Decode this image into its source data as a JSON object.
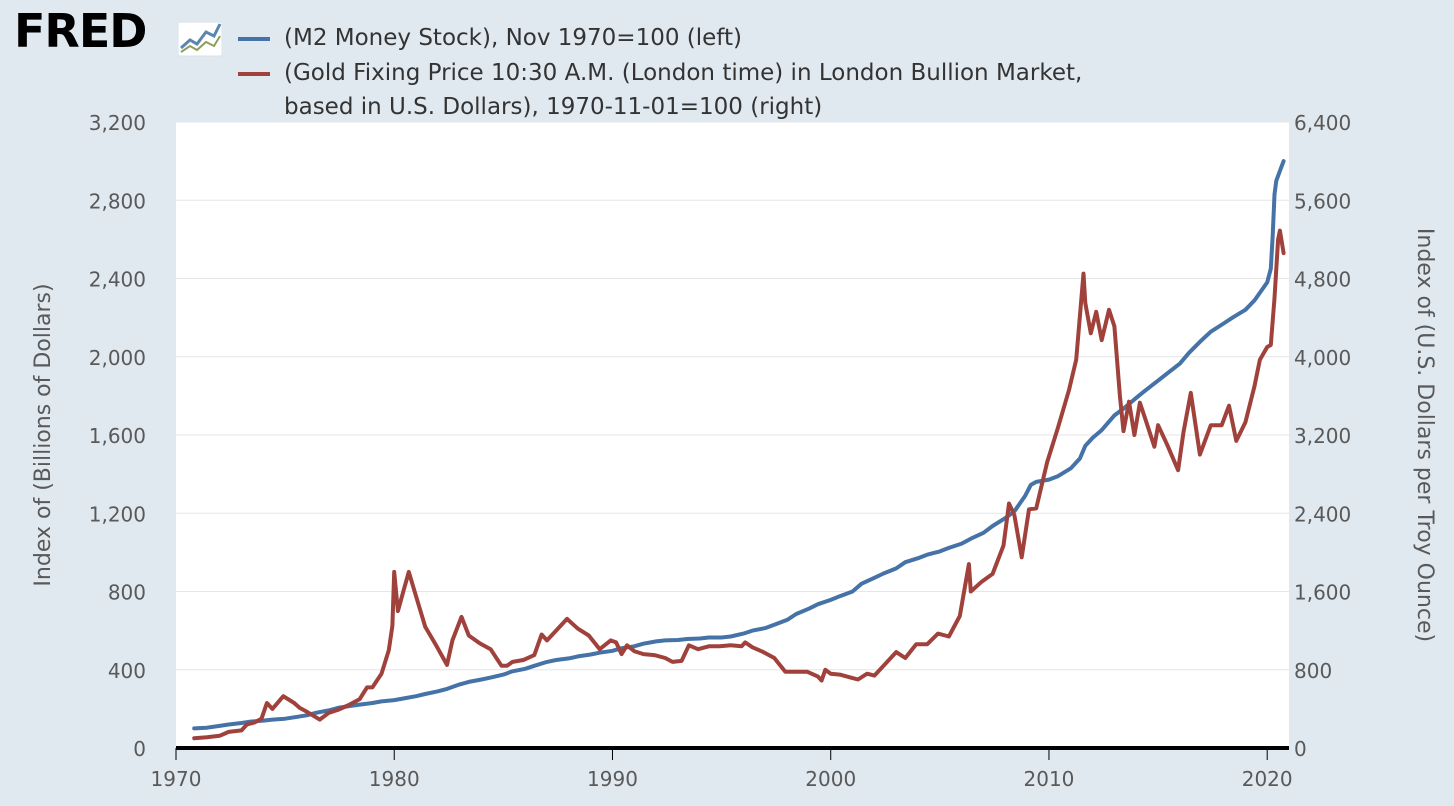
{
  "brand": {
    "logo_text": "FRED"
  },
  "chart_data": {
    "type": "line",
    "legend_placement": "top",
    "grid": true,
    "x": {
      "type": "date",
      "range": [
        "1970-01-01",
        "2020-12-31"
      ],
      "ticks": [
        "1970",
        "1980",
        "1990",
        "2000",
        "2010",
        "2020"
      ]
    },
    "y_left": {
      "label": "Index of (Billions of Dollars)",
      "range": [
        0,
        3200
      ],
      "ticks": [
        "0",
        "400",
        "800",
        "1,200",
        "1,600",
        "2,000",
        "2,400",
        "2,800",
        "3,200"
      ]
    },
    "y_right": {
      "label": "Index of (U.S. Dollars per Troy Ounce)",
      "range": [
        0,
        6400
      ],
      "ticks": [
        "0",
        "800",
        "1,600",
        "2,400",
        "3,200",
        "4,000",
        "4,800",
        "5,600",
        "6,400"
      ]
    },
    "series": [
      {
        "name_lines": [
          "(M2 Money Stock), Nov 1970=100 (left)"
        ],
        "axis": "left",
        "color": "#4572a7",
        "points": [
          [
            "1970-11",
            100
          ],
          [
            "1971-06",
            104
          ],
          [
            "1972-01",
            113
          ],
          [
            "1972-06",
            120
          ],
          [
            "1973-01",
            128
          ],
          [
            "1973-06",
            135
          ],
          [
            "1974-01",
            140
          ],
          [
            "1974-06",
            145
          ],
          [
            "1975-01",
            150
          ],
          [
            "1975-06",
            157
          ],
          [
            "1976-01",
            167
          ],
          [
            "1976-06",
            180
          ],
          [
            "1977-01",
            192
          ],
          [
            "1977-06",
            205
          ],
          [
            "1978-01",
            215
          ],
          [
            "1978-06",
            222
          ],
          [
            "1979-01",
            230
          ],
          [
            "1979-06",
            238
          ],
          [
            "1980-01",
            245
          ],
          [
            "1980-06",
            253
          ],
          [
            "1981-01",
            265
          ],
          [
            "1981-06",
            276
          ],
          [
            "1982-01",
            290
          ],
          [
            "1982-06",
            302
          ],
          [
            "1983-01",
            325
          ],
          [
            "1983-06",
            338
          ],
          [
            "1984-01",
            350
          ],
          [
            "1984-06",
            360
          ],
          [
            "1985-01",
            375
          ],
          [
            "1985-06",
            392
          ],
          [
            "1986-01",
            405
          ],
          [
            "1986-06",
            420
          ],
          [
            "1987-01",
            440
          ],
          [
            "1987-06",
            450
          ],
          [
            "1988-01",
            458
          ],
          [
            "1988-06",
            468
          ],
          [
            "1989-01",
            478
          ],
          [
            "1989-06",
            487
          ],
          [
            "1990-01",
            497
          ],
          [
            "1990-06",
            510
          ],
          [
            "1991-01",
            520
          ],
          [
            "1991-06",
            533
          ],
          [
            "1992-01",
            545
          ],
          [
            "1992-06",
            550
          ],
          [
            "1993-01",
            552
          ],
          [
            "1993-06",
            557
          ],
          [
            "1994-01",
            560
          ],
          [
            "1994-06",
            565
          ],
          [
            "1995-01",
            565
          ],
          [
            "1995-06",
            570
          ],
          [
            "1996-01",
            585
          ],
          [
            "1996-06",
            600
          ],
          [
            "1997-01",
            613
          ],
          [
            "1997-06",
            630
          ],
          [
            "1998-01",
            655
          ],
          [
            "1998-06",
            685
          ],
          [
            "1999-01",
            712
          ],
          [
            "1999-06",
            735
          ],
          [
            "2000-01",
            757
          ],
          [
            "2000-06",
            776
          ],
          [
            "2001-01",
            800
          ],
          [
            "2001-06",
            840
          ],
          [
            "2002-01",
            870
          ],
          [
            "2002-06",
            892
          ],
          [
            "2003-01",
            918
          ],
          [
            "2003-06",
            950
          ],
          [
            "2004-01",
            970
          ],
          [
            "2004-06",
            988
          ],
          [
            "2005-01",
            1005
          ],
          [
            "2005-06",
            1023
          ],
          [
            "2006-01",
            1045
          ],
          [
            "2006-06",
            1070
          ],
          [
            "2007-01",
            1100
          ],
          [
            "2007-06",
            1135
          ],
          [
            "2008-01",
            1175
          ],
          [
            "2008-06",
            1210
          ],
          [
            "2008-12",
            1290
          ],
          [
            "2009-03",
            1345
          ],
          [
            "2009-06",
            1360
          ],
          [
            "2010-01",
            1372
          ],
          [
            "2010-06",
            1390
          ],
          [
            "2011-01",
            1430
          ],
          [
            "2011-06",
            1480
          ],
          [
            "2011-09",
            1545
          ],
          [
            "2012-01",
            1585
          ],
          [
            "2012-06",
            1625
          ],
          [
            "2013-01",
            1700
          ],
          [
            "2013-06",
            1735
          ],
          [
            "2014-01",
            1790
          ],
          [
            "2014-06",
            1828
          ],
          [
            "2015-01",
            1878
          ],
          [
            "2015-06",
            1915
          ],
          [
            "2016-01",
            1965
          ],
          [
            "2016-06",
            2020
          ],
          [
            "2017-01",
            2085
          ],
          [
            "2017-06",
            2128
          ],
          [
            "2018-01",
            2170
          ],
          [
            "2018-06",
            2200
          ],
          [
            "2019-01",
            2240
          ],
          [
            "2019-06",
            2288
          ],
          [
            "2020-01",
            2380
          ],
          [
            "2020-03",
            2450
          ],
          [
            "2020-04",
            2620
          ],
          [
            "2020-05",
            2830
          ],
          [
            "2020-06",
            2900
          ],
          [
            "2020-08",
            2950
          ],
          [
            "2020-10",
            3000
          ]
        ]
      },
      {
        "name_lines": [
          "(Gold Fixing Price 10:30 A.M. (London time) in London Bullion Market,",
          "based in U.S. Dollars), 1970-11-01=100 (right)"
        ],
        "axis": "right",
        "color": "#a0413c",
        "points": [
          [
            "1970-11",
            100
          ],
          [
            "1971-06",
            110
          ],
          [
            "1972-01",
            125
          ],
          [
            "1972-06",
            165
          ],
          [
            "1973-01",
            180
          ],
          [
            "1973-04",
            240
          ],
          [
            "1973-08",
            260
          ],
          [
            "1973-12",
            300
          ],
          [
            "1974-03",
            460
          ],
          [
            "1974-06",
            400
          ],
          [
            "1974-12",
            530
          ],
          [
            "1975-06",
            460
          ],
          [
            "1975-09",
            410
          ],
          [
            "1976-01",
            370
          ],
          [
            "1976-08",
            290
          ],
          [
            "1977-01",
            360
          ],
          [
            "1977-06",
            390
          ],
          [
            "1977-12",
            440
          ],
          [
            "1978-06",
            500
          ],
          [
            "1978-10,",
            620
          ],
          [
            "1979-01",
            620
          ],
          [
            "1979-06",
            760
          ],
          [
            "1979-10",
            1000
          ],
          [
            "1979-12",
            1250
          ],
          [
            "1980-01",
            1800
          ],
          [
            "1980-03",
            1400
          ],
          [
            "1980-06",
            1600
          ],
          [
            "1980-09",
            1800
          ],
          [
            "1981-01",
            1550
          ],
          [
            "1981-06",
            1240
          ],
          [
            "1981-12",
            1050
          ],
          [
            "1982-06",
            850
          ],
          [
            "1982-09",
            1100
          ],
          [
            "1983-02",
            1340
          ],
          [
            "1983-06",
            1150
          ],
          [
            "1983-12",
            1070
          ],
          [
            "1984-06",
            1010
          ],
          [
            "1984-12",
            840
          ],
          [
            "1985-03",
            840
          ],
          [
            "1985-06",
            880
          ],
          [
            "1985-12",
            900
          ],
          [
            "1986-06",
            950
          ],
          [
            "1986-10",
            1160
          ],
          [
            "1987-01",
            1100
          ],
          [
            "1987-06",
            1200
          ],
          [
            "1987-12",
            1320
          ],
          [
            "1988-06",
            1220
          ],
          [
            "1988-12",
            1150
          ],
          [
            "1989-06",
            1010
          ],
          [
            "1989-12",
            1100
          ],
          [
            "1990-03",
            1080
          ],
          [
            "1990-06",
            960
          ],
          [
            "1990-09",
            1050
          ],
          [
            "1991-01",
            990
          ],
          [
            "1991-06",
            960
          ],
          [
            "1991-12",
            950
          ],
          [
            "1992-06",
            920
          ],
          [
            "1992-10",
            880
          ],
          [
            "1993-03",
            890
          ],
          [
            "1993-07",
            1050
          ],
          [
            "1993-12",
            1010
          ],
          [
            "1994-06",
            1040
          ],
          [
            "1994-12",
            1040
          ],
          [
            "1995-06",
            1050
          ],
          [
            "1995-12",
            1040
          ],
          [
            "1996-02",
            1080
          ],
          [
            "1996-06",
            1030
          ],
          [
            "1996-12",
            980
          ],
          [
            "1997-06",
            920
          ],
          [
            "1997-12",
            780
          ],
          [
            "1998-06",
            780
          ],
          [
            "1998-12",
            780
          ],
          [
            "1999-06",
            730
          ],
          [
            "1999-08",
            690
          ],
          [
            "1999-10",
            800
          ],
          [
            "2000-01",
            760
          ],
          [
            "2000-06",
            750
          ],
          [
            "2000-12",
            720
          ],
          [
            "2001-04",
            700
          ],
          [
            "2001-09",
            760
          ],
          [
            "2002-01",
            740
          ],
          [
            "2002-06",
            840
          ],
          [
            "2003-01",
            980
          ],
          [
            "2003-06",
            920
          ],
          [
            "2003-12",
            1060
          ],
          [
            "2004-06",
            1060
          ],
          [
            "2004-12",
            1170
          ],
          [
            "2005-06",
            1140
          ],
          [
            "2005-12",
            1350
          ],
          [
            "2006-05",
            1880
          ],
          [
            "2006-06",
            1600
          ],
          [
            "2006-12",
            1700
          ],
          [
            "2007-06",
            1780
          ],
          [
            "2007-12",
            2070
          ],
          [
            "2008-03",
            2500
          ],
          [
            "2008-06",
            2380
          ],
          [
            "2008-10",
            1950
          ],
          [
            "2009-02",
            2440
          ],
          [
            "2009-06",
            2450
          ],
          [
            "2009-12",
            2920
          ],
          [
            "2010-06",
            3280
          ],
          [
            "2010-12",
            3660
          ],
          [
            "2011-04",
            3970
          ],
          [
            "2011-08",
            4850
          ],
          [
            "2011-09",
            4550
          ],
          [
            "2011-12",
            4240
          ],
          [
            "2012-03",
            4460
          ],
          [
            "2012-06",
            4170
          ],
          [
            "2012-10",
            4480
          ],
          [
            "2013-01",
            4310
          ],
          [
            "2013-04",
            3600
          ],
          [
            "2013-06",
            3240
          ],
          [
            "2013-09",
            3540
          ],
          [
            "2013-12",
            3200
          ],
          [
            "2014-03",
            3530
          ],
          [
            "2014-06",
            3360
          ],
          [
            "2014-11",
            3080
          ],
          [
            "2015-01",
            3300
          ],
          [
            "2015-06",
            3100
          ],
          [
            "2015-12",
            2840
          ],
          [
            "2016-03",
            3230
          ],
          [
            "2016-07",
            3630
          ],
          [
            "2016-12",
            3000
          ],
          [
            "2017-06",
            3300
          ],
          [
            "2017-12",
            3300
          ],
          [
            "2018-04",
            3500
          ],
          [
            "2018-08",
            3140
          ],
          [
            "2019-01",
            3330
          ],
          [
            "2019-06",
            3700
          ],
          [
            "2019-09",
            3970
          ],
          [
            "2020-01",
            4100
          ],
          [
            "2020-03",
            4120
          ],
          [
            "2020-05",
            4600
          ],
          [
            "2020-07",
            5200
          ],
          [
            "2020-08",
            5290
          ],
          [
            "2020-10",
            5060
          ]
        ]
      }
    ]
  }
}
